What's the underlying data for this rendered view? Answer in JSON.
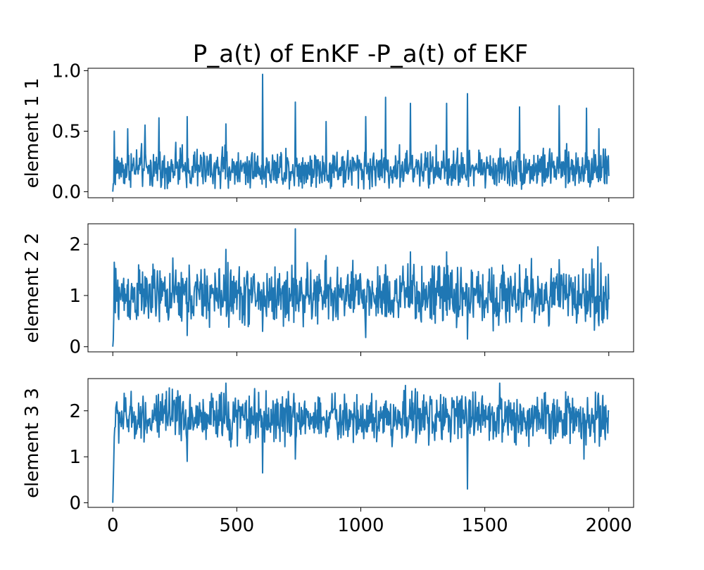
{
  "chart_data": {
    "type": "line",
    "title": "P_a(t) of EnKF -P_a(t) of EKF",
    "x_range": [
      0,
      2000
    ],
    "xlim": [
      -100,
      2100
    ],
    "xticks": [
      0,
      500,
      1000,
      1500,
      2000
    ],
    "xtick_labels": [
      "0",
      "500",
      "1000",
      "1500",
      "2000"
    ],
    "grid": false,
    "color": "#1f77b4",
    "subplots": [
      {
        "ylabel": "element 1 1",
        "ylim": [
          -0.05,
          1.02
        ],
        "yticks": [
          0.0,
          0.5,
          1.0
        ],
        "ytick_labels": [
          "0.0",
          "0.5",
          "1.0"
        ],
        "start_value": 0.0,
        "baseline": 0.19,
        "noise": 0.08,
        "floor": 0.02,
        "peaks": [
          [
            5,
            0.5
          ],
          [
            60,
            0.52
          ],
          [
            130,
            0.55
          ],
          [
            185,
            0.61
          ],
          [
            300,
            0.62
          ],
          [
            455,
            0.56
          ],
          [
            603,
            0.97
          ],
          [
            735,
            0.74
          ],
          [
            860,
            0.58
          ],
          [
            1020,
            0.62
          ],
          [
            1100,
            0.78
          ],
          [
            1200,
            0.73
          ],
          [
            1345,
            0.73
          ],
          [
            1430,
            0.81
          ],
          [
            1640,
            0.7
          ],
          [
            1800,
            0.71
          ],
          [
            1910,
            0.69
          ],
          [
            1960,
            0.52
          ]
        ]
      },
      {
        "ylabel": "element 2 2",
        "ylim": [
          -0.1,
          2.4
        ],
        "yticks": [
          0,
          1,
          2
        ],
        "ytick_labels": [
          "0",
          "1",
          "2"
        ],
        "start_value": 0.0,
        "baseline": 1.0,
        "noise": 0.28,
        "floor": 0.2,
        "peaks": [
          [
            5,
            1.65
          ],
          [
            300,
            1.9
          ],
          [
            455,
            1.9
          ],
          [
            603,
            2.18
          ],
          [
            735,
            2.3
          ],
          [
            860,
            1.78
          ],
          [
            1020,
            1.75
          ],
          [
            1100,
            1.6
          ],
          [
            1200,
            1.85
          ],
          [
            1345,
            1.85
          ],
          [
            1430,
            2.22
          ],
          [
            1640,
            1.6
          ],
          [
            1800,
            1.7
          ],
          [
            1955,
            1.95
          ]
        ],
        "dips": [
          [
            300,
            0.22
          ],
          [
            603,
            0.3
          ],
          [
            1020,
            0.18
          ],
          [
            1430,
            0.15
          ]
        ]
      },
      {
        "ylabel": "element 3 3",
        "ylim": [
          -0.1,
          2.7
        ],
        "yticks": [
          0,
          1,
          2
        ],
        "ytick_labels": [
          "0",
          "1",
          "2"
        ],
        "start_value": 0.0,
        "baseline": 1.85,
        "noise": 0.26,
        "floor": 1.2,
        "peaks": [
          [
            455,
            2.6
          ],
          [
            735,
            2.55
          ],
          [
            1180,
            2.55
          ],
          [
            1430,
            2.5
          ],
          [
            1560,
            2.6
          ]
        ],
        "dips": [
          [
            300,
            0.9
          ],
          [
            603,
            0.65
          ],
          [
            735,
            0.95
          ],
          [
            1430,
            0.3
          ],
          [
            1900,
            0.95
          ]
        ]
      }
    ]
  }
}
